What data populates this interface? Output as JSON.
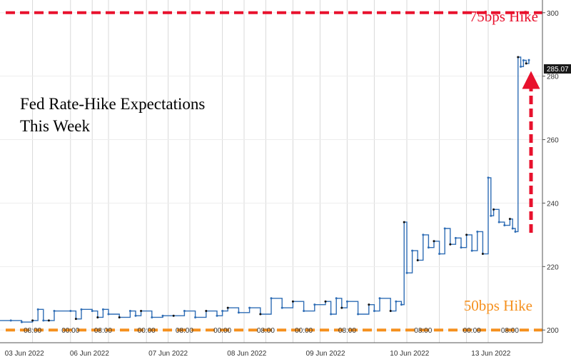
{
  "chart_data": {
    "type": "line",
    "title": [
      "Fed Rate-Hike Expectations",
      "This Week"
    ],
    "ylim": [
      196,
      304
    ],
    "y_ticks": [
      200,
      220,
      240,
      260,
      280,
      300
    ],
    "x_axis": {
      "time_labels": [
        "08:00",
        "00:00",
        "08:00",
        "00:00",
        "08:00",
        "00:00",
        "08:00",
        "00:00",
        "08:00",
        "08:00",
        "00:00",
        "08:00"
      ],
      "date_labels": [
        "03 Jun 2022",
        "06 Jun 2022",
        "07 Jun 2022",
        "08 Jun 2022",
        "09 Jun 2022",
        "10 Jun 2022",
        "13 Jun 2022"
      ]
    },
    "reference_lines": [
      {
        "label": "75bps Hike",
        "value": 300,
        "color": "#e8112d"
      },
      {
        "label": "50bps Hike",
        "value": 200,
        "color": "#f5901e"
      }
    ],
    "last_value": {
      "text": "285.07",
      "value": 285.07
    },
    "series": [
      {
        "x": [
          0,
          0.02,
          0.04,
          0.06,
          0.07,
          0.08,
          0.09,
          0.1,
          0.13,
          0.14,
          0.15,
          0.17,
          0.18,
          0.19,
          0.2,
          0.22,
          0.24,
          0.25,
          0.26,
          0.28,
          0.3,
          0.32,
          0.34,
          0.36,
          0.38,
          0.4,
          0.41,
          0.42,
          0.44,
          0.46,
          0.48,
          0.5,
          0.52,
          0.54,
          0.56,
          0.58,
          0.6,
          0.61,
          0.62,
          0.63,
          0.64,
          0.66,
          0.68,
          0.69,
          0.7,
          0.72,
          0.73,
          0.74,
          0.745,
          0.75,
          0.76,
          0.77,
          0.78,
          0.79,
          0.8,
          0.81,
          0.82,
          0.83,
          0.84,
          0.85,
          0.86,
          0.87,
          0.88,
          0.89,
          0.9,
          0.905,
          0.91,
          0.92,
          0.93,
          0.94,
          0.945,
          0.95,
          0.955,
          0.96,
          0.965,
          0.97,
          0.975
        ],
        "values": [
          203,
          203,
          202.5,
          203,
          206.5,
          203,
          203,
          206,
          206,
          203.5,
          206.5,
          206,
          204,
          206.5,
          205,
          204,
          206,
          204.5,
          206,
          204,
          204.5,
          204.5,
          206,
          204,
          206,
          204.5,
          206,
          207,
          205.5,
          207,
          205,
          210,
          207,
          209,
          206,
          208,
          209,
          205,
          210,
          207,
          209,
          205,
          208,
          206,
          210,
          206,
          209,
          208,
          234,
          218,
          225,
          222,
          230,
          226,
          228,
          224,
          232,
          227,
          229,
          226,
          230,
          225,
          231,
          224,
          248,
          236,
          238,
          234,
          233,
          235,
          232,
          231,
          286,
          283,
          285,
          284,
          285.07
        ]
      }
    ]
  }
}
